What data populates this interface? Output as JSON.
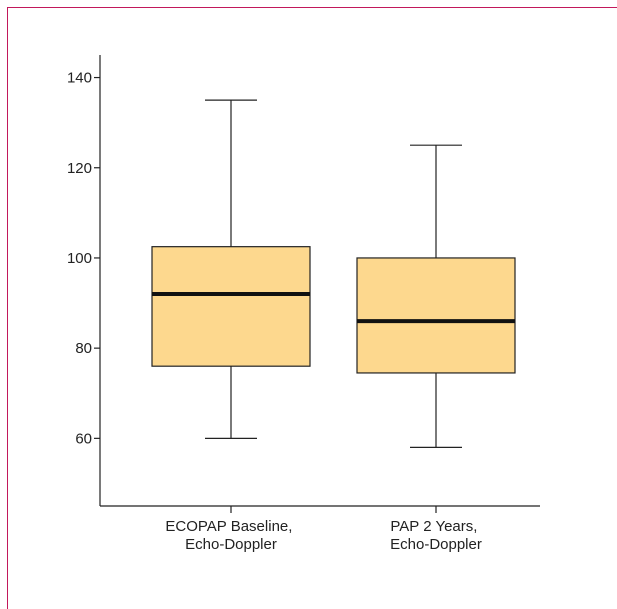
{
  "colors": {
    "frame": "#c2185b",
    "box_fill": "#fdd88e",
    "stroke": "#222222"
  },
  "chart_data": {
    "type": "box",
    "title": "",
    "xlabel": "",
    "ylabel": "",
    "ylim": [
      45,
      145
    ],
    "yticks": [
      "60",
      "80",
      "100",
      "120",
      "140"
    ],
    "grid": false,
    "categories": [
      {
        "line1": "ECOPAP Baseline,",
        "line2": "Echo-Doppler"
      },
      {
        "line1": "PAP 2 Years,",
        "line2": "Echo-Doppler"
      }
    ],
    "boxes": [
      {
        "min": 60,
        "q1": 76,
        "median": 92,
        "q3": 102.5,
        "max": 135
      },
      {
        "min": 58,
        "q1": 74.5,
        "median": 86,
        "q3": 100,
        "max": 125
      }
    ]
  }
}
